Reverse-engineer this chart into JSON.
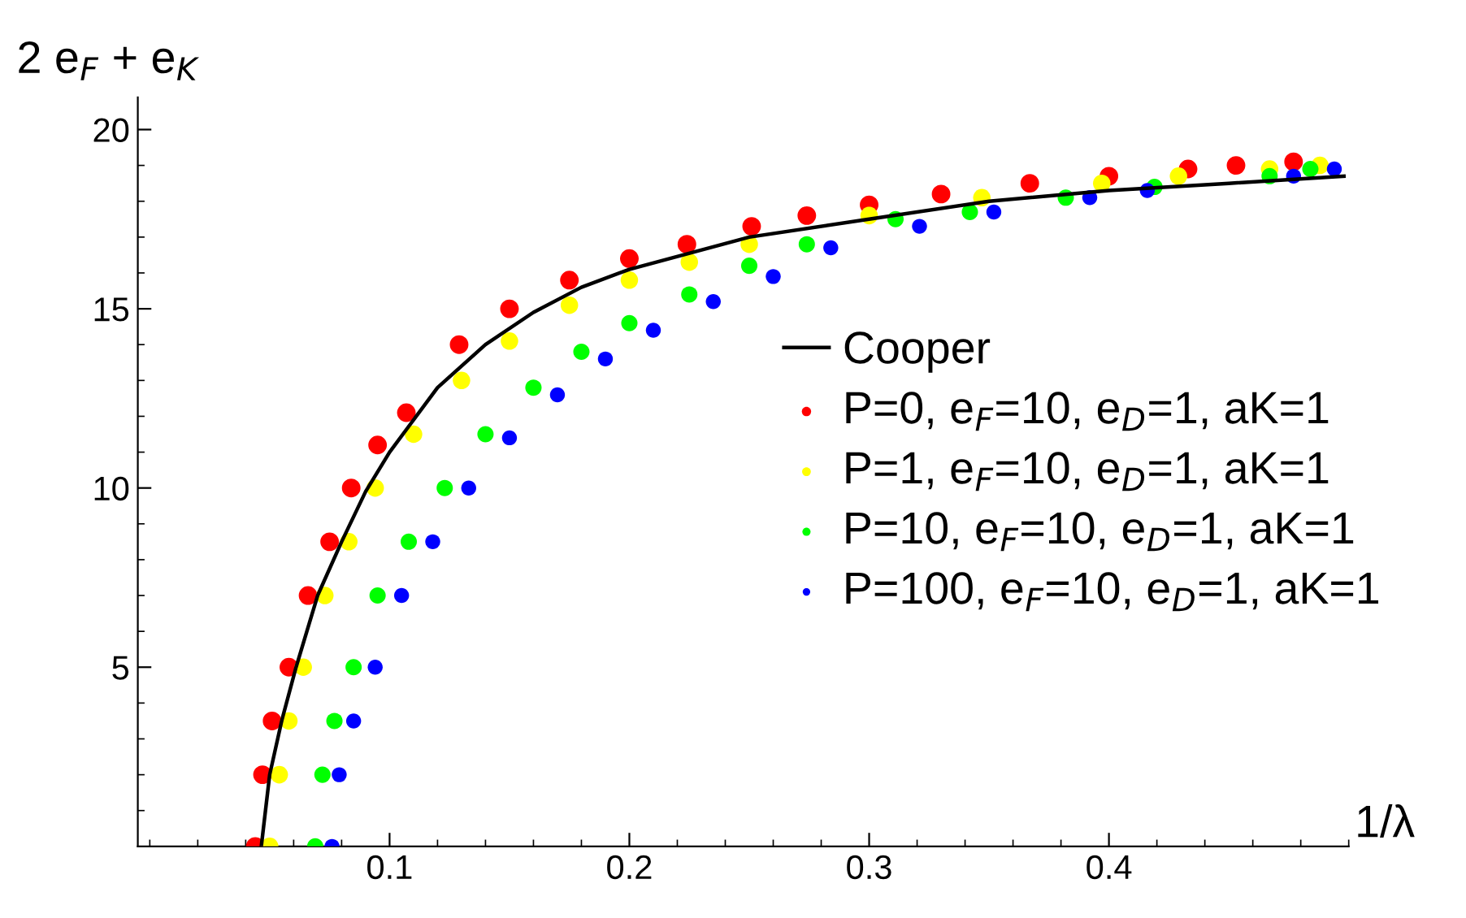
{
  "chart_data": {
    "type": "scatter",
    "xlabel": "1/λ",
    "ylabel": "2 e$_{F}$ + e$_{K}$",
    "xlim": [
      -0.005,
      0.5
    ],
    "ylim": [
      0,
      20.9
    ],
    "xticks": [
      0.1,
      0.2,
      0.3,
      0.4
    ],
    "yticks": [
      5,
      10,
      15,
      20
    ],
    "grid": false,
    "legend": "right",
    "series": [
      {
        "name": "Cooper",
        "type": "line",
        "color": "#000000",
        "line_style": "solid",
        "marker": "none",
        "x": [
          0.0465,
          0.05,
          0.055,
          0.061,
          0.07,
          0.08,
          0.09,
          0.1,
          0.12,
          0.14,
          0.16,
          0.18,
          0.2,
          0.25,
          0.3,
          0.35,
          0.4,
          0.45,
          0.498
        ],
        "values": [
          0,
          2,
          3.5,
          5,
          7,
          8.5,
          9.9,
          11,
          12.8,
          14,
          14.9,
          15.6,
          16.1,
          17,
          17.5,
          18,
          18.3,
          18.5,
          18.7
        ]
      },
      {
        "name": "P=0, e$_{F}$=10, e$_{D}$=1, aK=1",
        "color": "#ff0000",
        "marker": "circle",
        "x": [
          0.044,
          0.047,
          0.051,
          0.058,
          0.066,
          0.075,
          0.084,
          0.095,
          0.107,
          0.129,
          0.15,
          0.175,
          0.2,
          0.224,
          0.251,
          0.274,
          0.3,
          0.33,
          0.367,
          0.4,
          0.433,
          0.453,
          0.477
        ],
        "values": [
          0,
          2,
          3.5,
          5,
          7,
          8.5,
          10,
          11.2,
          12.1,
          14,
          15,
          15.8,
          16.4,
          16.8,
          17.3,
          17.6,
          17.9,
          18.2,
          18.5,
          18.7,
          18.9,
          19,
          19.1
        ]
      },
      {
        "name": "P=1, e$_{F}$=10, e$_{D}$=1, aK=1",
        "color": "#ffff00",
        "marker": "circle",
        "x": [
          0.05,
          0.054,
          0.058,
          0.064,
          0.073,
          0.083,
          0.094,
          0.11,
          0.13,
          0.15,
          0.175,
          0.2,
          0.225,
          0.25,
          0.3,
          0.347,
          0.397,
          0.429,
          0.467,
          0.488
        ],
        "values": [
          0,
          2,
          3.5,
          5,
          7,
          8.5,
          10,
          11.5,
          13,
          14.1,
          15.1,
          15.8,
          16.3,
          16.8,
          17.6,
          18.1,
          18.5,
          18.7,
          18.9,
          19
        ]
      },
      {
        "name": "P=10, e$_{F}$=10, e$_{D}$=1, aK=1",
        "color": "#00ff00",
        "marker": "circle",
        "x": [
          0.069,
          0.072,
          0.077,
          0.085,
          0.095,
          0.108,
          0.123,
          0.14,
          0.16,
          0.18,
          0.2,
          0.225,
          0.25,
          0.274,
          0.311,
          0.342,
          0.382,
          0.419,
          0.467,
          0.484
        ],
        "values": [
          0,
          2,
          3.5,
          5,
          7,
          8.5,
          10,
          11.5,
          12.8,
          13.8,
          14.6,
          15.4,
          16.2,
          16.8,
          17.5,
          17.7,
          18.1,
          18.4,
          18.7,
          18.9
        ]
      },
      {
        "name": "P=100, e$_{F}$=10, e$_{D}$=1, aK=1",
        "color": "#0000ff",
        "marker": "circle",
        "x": [
          0.076,
          0.079,
          0.085,
          0.094,
          0.105,
          0.118,
          0.133,
          0.15,
          0.17,
          0.19,
          0.21,
          0.235,
          0.26,
          0.284,
          0.321,
          0.352,
          0.392,
          0.416,
          0.477,
          0.494
        ],
        "values": [
          0,
          2,
          3.5,
          5,
          7,
          8.5,
          10,
          11.4,
          12.6,
          13.6,
          14.4,
          15.2,
          15.9,
          16.7,
          17.3,
          17.7,
          18.1,
          18.3,
          18.7,
          18.9
        ]
      }
    ]
  }
}
